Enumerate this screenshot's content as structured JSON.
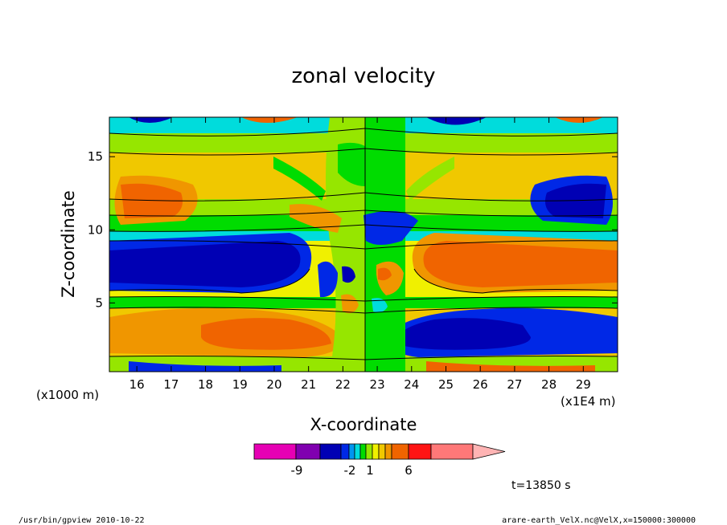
{
  "chart_data": {
    "type": "heatmap",
    "title": "zonal velocity",
    "xlabel": "X-coordinate",
    "ylabel": "Z-coordinate",
    "x_unit_left": "(x1000 m)",
    "x_unit_right": "(x1E4 m)",
    "xlim": [
      15.2,
      30.0
    ],
    "ylim": [
      0.3,
      17.7
    ],
    "x_ticks": [
      16,
      17,
      18,
      19,
      20,
      21,
      22,
      23,
      24,
      25,
      26,
      27,
      28,
      29
    ],
    "y_ticks": [
      5,
      10,
      15
    ],
    "colorbar": {
      "colors": [
        "#e600b4",
        "#8000b0",
        "#0000b4",
        "#0028e6",
        "#0096f0",
        "#00dcdc",
        "#00dc00",
        "#96e600",
        "#f0f000",
        "#f0c800",
        "#f09600",
        "#f06400",
        "#ff1414",
        "#ff7878",
        "#ffb4b4"
      ],
      "tick_labels": [
        "-9",
        "-2",
        "1",
        "6"
      ]
    },
    "time_label": "t=13850 s"
  },
  "footer": {
    "left": "/usr/bin/gpview   2010-10-22",
    "right": "arare-earth_VelX.nc@VelX,x=150000:300000"
  }
}
